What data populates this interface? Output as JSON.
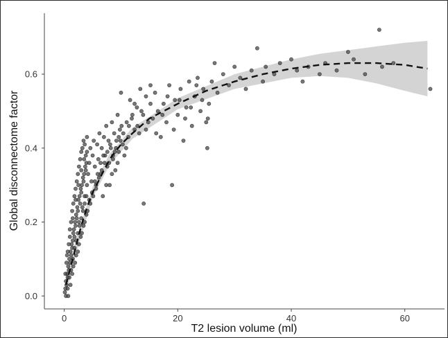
{
  "chart_data": {
    "type": "scatter",
    "title": "",
    "xlabel": "T2 lesion volume (ml)",
    "ylabel": "Global disconnectome factor",
    "xlim": [
      -3.5,
      67
    ],
    "ylim": [
      -0.035,
      0.765
    ],
    "x_ticks": [
      0,
      20,
      40,
      60
    ],
    "y_ticks": [
      0.0,
      0.2,
      0.4,
      0.6
    ],
    "x_tick_labels": [
      "0",
      "20",
      "40",
      "60"
    ],
    "y_tick_labels": [
      "0.0",
      "0.2",
      "0.4",
      "0.6"
    ],
    "grid": false,
    "legend": "none",
    "colors": {
      "points": "#4a4a4a",
      "fit_line": "#111111",
      "confidence_band": "#cccccc"
    },
    "fit_line": {
      "style": "dashed",
      "x": [
        0.3,
        1,
        2,
        3,
        4,
        5,
        6,
        7,
        8,
        10,
        12,
        15,
        20,
        25,
        30,
        35,
        40,
        45,
        50,
        55,
        60,
        64
      ],
      "y": [
        0.03,
        0.07,
        0.13,
        0.19,
        0.24,
        0.28,
        0.31,
        0.34,
        0.37,
        0.41,
        0.44,
        0.48,
        0.52,
        0.555,
        0.58,
        0.6,
        0.615,
        0.625,
        0.63,
        0.63,
        0.625,
        0.615
      ]
    },
    "confidence_band": {
      "x": [
        0.3,
        2,
        5,
        8,
        12,
        20,
        30,
        40,
        45,
        50,
        55,
        60,
        64
      ],
      "lower": [
        0.0,
        0.11,
        0.265,
        0.355,
        0.425,
        0.505,
        0.56,
        0.59,
        0.595,
        0.59,
        0.575,
        0.555,
        0.54
      ],
      "upper": [
        0.055,
        0.15,
        0.295,
        0.385,
        0.455,
        0.535,
        0.6,
        0.64,
        0.655,
        0.665,
        0.675,
        0.685,
        0.69
      ]
    },
    "points": [
      [
        0.1,
        0.01
      ],
      [
        0.2,
        0.02
      ],
      [
        0.3,
        0.04
      ],
      [
        0.4,
        0.03
      ],
      [
        0.5,
        0.06
      ],
      [
        0.6,
        0.05
      ],
      [
        0.7,
        0.08
      ],
      [
        0.8,
        0.07
      ],
      [
        0.9,
        0.1
      ],
      [
        1.0,
        0.09
      ],
      [
        1.1,
        0.12
      ],
      [
        1.2,
        0.11
      ],
      [
        1.3,
        0.14
      ],
      [
        1.4,
        0.13
      ],
      [
        1.5,
        0.15
      ],
      [
        1.6,
        0.17
      ],
      [
        1.7,
        0.18
      ],
      [
        1.8,
        0.16
      ],
      [
        1.9,
        0.2
      ],
      [
        2.0,
        0.19
      ],
      [
        2.1,
        0.22
      ],
      [
        2.2,
        0.21
      ],
      [
        2.3,
        0.24
      ],
      [
        2.4,
        0.23
      ],
      [
        2.5,
        0.26
      ],
      [
        2.6,
        0.2
      ],
      [
        2.7,
        0.27
      ],
      [
        2.8,
        0.25
      ],
      [
        2.9,
        0.29
      ],
      [
        3.0,
        0.28
      ],
      [
        3.1,
        0.3
      ],
      [
        3.2,
        0.24
      ],
      [
        3.3,
        0.32
      ],
      [
        3.4,
        0.31
      ],
      [
        3.5,
        0.33
      ],
      [
        3.6,
        0.27
      ],
      [
        3.7,
        0.35
      ],
      [
        3.8,
        0.34
      ],
      [
        3.9,
        0.36
      ],
      [
        4.0,
        0.3
      ],
      [
        0.3,
        0.0
      ],
      [
        0.6,
        0.02
      ],
      [
        0.9,
        0.05
      ],
      [
        1.2,
        0.07
      ],
      [
        1.5,
        0.1
      ],
      [
        1.8,
        0.13
      ],
      [
        2.1,
        0.15
      ],
      [
        2.4,
        0.17
      ],
      [
        2.7,
        0.19
      ],
      [
        3.0,
        0.21
      ],
      [
        3.3,
        0.23
      ],
      [
        3.6,
        0.25
      ],
      [
        3.9,
        0.27
      ],
      [
        0.5,
        0.11
      ],
      [
        1.0,
        0.16
      ],
      [
        1.5,
        0.21
      ],
      [
        2.0,
        0.26
      ],
      [
        2.5,
        0.3
      ],
      [
        3.0,
        0.34
      ],
      [
        3.5,
        0.37
      ],
      [
        4.0,
        0.39
      ],
      [
        4.2,
        0.33
      ],
      [
        4.4,
        0.36
      ],
      [
        4.6,
        0.4
      ],
      [
        4.8,
        0.31
      ],
      [
        5.0,
        0.38
      ],
      [
        5.2,
        0.42
      ],
      [
        5.4,
        0.35
      ],
      [
        5.6,
        0.29
      ],
      [
        5.8,
        0.41
      ],
      [
        6.0,
        0.37
      ],
      [
        6.2,
        0.44
      ],
      [
        6.4,
        0.33
      ],
      [
        6.6,
        0.4
      ],
      [
        6.8,
        0.27
      ],
      [
        7.0,
        0.43
      ],
      [
        7.2,
        0.38
      ],
      [
        7.4,
        0.46
      ],
      [
        7.6,
        0.35
      ],
      [
        7.8,
        0.42
      ],
      [
        8.0,
        0.3
      ],
      [
        8.2,
        0.4
      ],
      [
        8.4,
        0.47
      ],
      [
        8.6,
        0.37
      ],
      [
        8.8,
        0.44
      ],
      [
        9.0,
        0.34
      ],
      [
        9.2,
        0.42
      ],
      [
        9.4,
        0.49
      ],
      [
        9.6,
        0.39
      ],
      [
        9.8,
        0.45
      ],
      [
        10.0,
        0.55
      ],
      [
        10.3,
        0.41
      ],
      [
        10.6,
        0.38
      ],
      [
        11.0,
        0.47
      ],
      [
        11.3,
        0.43
      ],
      [
        11.6,
        0.53
      ],
      [
        12.0,
        0.49
      ],
      [
        12.4,
        0.45
      ],
      [
        12.8,
        0.51
      ],
      [
        13.2,
        0.44
      ],
      [
        13.6,
        0.5
      ],
      [
        14.0,
        0.25
      ],
      [
        14.4,
        0.54
      ],
      [
        14.8,
        0.47
      ],
      [
        15.2,
        0.52
      ],
      [
        15.6,
        0.48
      ],
      [
        16.0,
        0.55
      ],
      [
        16.5,
        0.5
      ],
      [
        17.0,
        0.43
      ],
      [
        17.5,
        0.52
      ],
      [
        18.0,
        0.47
      ],
      [
        18.5,
        0.57
      ],
      [
        19.0,
        0.3
      ],
      [
        19.5,
        0.53
      ],
      [
        20.0,
        0.49
      ],
      [
        20.5,
        0.56
      ],
      [
        21.0,
        0.42
      ],
      [
        21.5,
        0.51
      ],
      [
        22.0,
        0.58
      ],
      [
        22.5,
        0.46
      ],
      [
        23.0,
        0.54
      ],
      [
        23.5,
        0.59
      ],
      [
        24.0,
        0.5
      ],
      [
        24.5,
        0.56
      ],
      [
        25.0,
        0.47
      ],
      [
        25.2,
        0.4
      ],
      [
        25.5,
        0.52
      ],
      [
        26.0,
        0.58
      ],
      [
        26.5,
        0.63
      ],
      [
        27.0,
        0.55
      ],
      [
        28.0,
        0.6
      ],
      [
        29.0,
        0.57
      ],
      [
        30.0,
        0.62
      ],
      [
        31.0,
        0.59
      ],
      [
        32.0,
        0.56
      ],
      [
        33.0,
        0.61
      ],
      [
        34.0,
        0.67
      ],
      [
        35.0,
        0.58
      ],
      [
        35.5,
        0.62
      ],
      [
        37.0,
        0.6
      ],
      [
        38.0,
        0.63
      ],
      [
        40.0,
        0.64
      ],
      [
        41.0,
        0.61
      ],
      [
        42.0,
        0.58
      ],
      [
        43.0,
        0.62
      ],
      [
        45.0,
        0.6
      ],
      [
        46.0,
        0.63
      ],
      [
        48.0,
        0.61
      ],
      [
        50.0,
        0.66
      ],
      [
        51.0,
        0.64
      ],
      [
        53.0,
        0.6
      ],
      [
        55.5,
        0.72
      ],
      [
        56.0,
        0.62
      ],
      [
        58.0,
        0.63
      ],
      [
        64.5,
        0.56
      ],
      [
        1.4,
        0.06
      ],
      [
        1.9,
        0.09
      ],
      [
        2.4,
        0.12
      ],
      [
        2.9,
        0.16
      ],
      [
        3.4,
        0.19
      ],
      [
        3.9,
        0.22
      ],
      [
        4.4,
        0.26
      ],
      [
        4.9,
        0.28
      ],
      [
        5.4,
        0.31
      ],
      [
        5.9,
        0.33
      ],
      [
        6.4,
        0.36
      ],
      [
        6.9,
        0.38
      ],
      [
        7.4,
        0.3
      ],
      [
        7.9,
        0.36
      ],
      [
        8.4,
        0.33
      ],
      [
        8.9,
        0.39
      ],
      [
        9.4,
        0.36
      ],
      [
        9.9,
        0.42
      ],
      [
        10.4,
        0.44
      ],
      [
        10.9,
        0.4
      ],
      [
        11.4,
        0.46
      ],
      [
        11.9,
        0.48
      ],
      [
        12.4,
        0.52
      ],
      [
        12.9,
        0.46
      ],
      [
        13.4,
        0.56
      ],
      [
        13.9,
        0.49
      ],
      [
        14.4,
        0.45
      ],
      [
        15.2,
        0.57
      ],
      [
        16.2,
        0.44
      ],
      [
        17.3,
        0.49
      ],
      [
        18.2,
        0.54
      ],
      [
        19.3,
        0.45
      ],
      [
        20.3,
        0.53
      ],
      [
        21.3,
        0.48
      ],
      [
        22.3,
        0.51
      ],
      [
        23.3,
        0.57
      ],
      [
        24.3,
        0.53
      ],
      [
        25.3,
        0.48
      ],
      [
        0.2,
        0.06
      ],
      [
        0.4,
        0.09
      ],
      [
        0.6,
        0.12
      ],
      [
        0.8,
        0.14
      ],
      [
        1.0,
        0.18
      ],
      [
        1.2,
        0.2
      ],
      [
        1.4,
        0.23
      ],
      [
        1.6,
        0.25
      ],
      [
        1.8,
        0.27
      ],
      [
        2.0,
        0.29
      ],
      [
        2.2,
        0.31
      ],
      [
        2.4,
        0.33
      ],
      [
        2.6,
        0.35
      ],
      [
        2.8,
        0.37
      ],
      [
        3.0,
        0.39
      ],
      [
        3.2,
        0.4
      ],
      [
        3.4,
        0.42
      ],
      [
        3.6,
        0.41
      ],
      [
        3.8,
        0.38
      ],
      [
        4.0,
        0.43
      ],
      [
        0.7,
        0.0
      ],
      [
        1.1,
        0.03
      ],
      [
        1.6,
        0.08
      ],
      [
        2.1,
        0.11
      ],
      [
        2.6,
        0.14
      ],
      [
        3.1,
        0.17
      ],
      [
        3.6,
        0.2
      ],
      [
        4.1,
        0.23
      ],
      [
        4.6,
        0.25
      ],
      [
        5.1,
        0.27
      ],
      [
        5.6,
        0.3
      ],
      [
        6.1,
        0.32
      ],
      [
        6.6,
        0.34
      ],
      [
        7.1,
        0.36
      ],
      [
        7.6,
        0.39
      ],
      [
        8.1,
        0.41
      ],
      [
        8.6,
        0.38
      ],
      [
        9.1,
        0.4
      ],
      [
        9.6,
        0.43
      ],
      [
        10.1,
        0.46
      ]
    ]
  }
}
